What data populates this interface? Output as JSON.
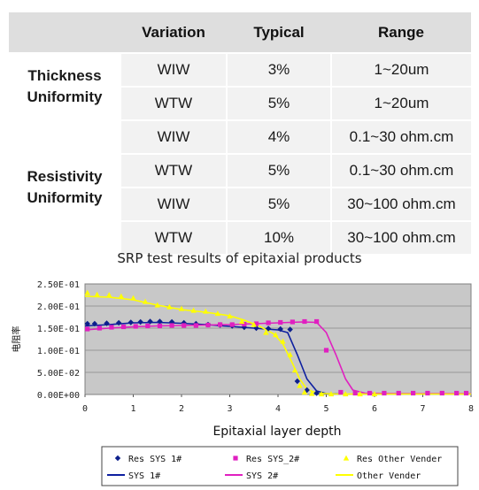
{
  "table": {
    "headers": [
      "",
      "Variation",
      "Typical",
      "Range"
    ],
    "groups": [
      {
        "label": "Thickness Uniformity",
        "rows": [
          {
            "variation": "WIW",
            "typical": "3%",
            "range": "1~20um"
          },
          {
            "variation": "WTW",
            "typical": "5%",
            "range": "1~20um"
          }
        ]
      },
      {
        "label": "Resistivity Uniformity",
        "rows": [
          {
            "variation": "WIW",
            "typical": "4%",
            "range": "0.1~30 ohm.cm"
          },
          {
            "variation": "WTW",
            "typical": "5%",
            "range": "0.1~30 ohm.cm"
          },
          {
            "variation": "WIW",
            "typical": "5%",
            "range": "30~100 ohm.cm"
          },
          {
            "variation": "WTW",
            "typical": "10%",
            "range": "30~100 ohm.cm"
          }
        ]
      }
    ]
  },
  "chart_data": {
    "type": "scatter",
    "title": "SRP test results of epitaxial products",
    "xlabel": "Epitaxial layer depth",
    "ylabel": "电阻率",
    "xlim": [
      0,
      8
    ],
    "ylim": [
      0,
      0.25
    ],
    "x_ticks": [
      "0",
      "1",
      "2",
      "3",
      "4",
      "5",
      "6",
      "7",
      "8"
    ],
    "y_ticks": [
      "0.00E+00",
      "5.00E-02",
      "1.00E-01",
      "1.50E-01",
      "2.00E-01",
      "2.50E-01"
    ],
    "plot_background": "#c8c8c8",
    "grid": true,
    "legend_position": "bottom",
    "series": [
      {
        "name": "Res SYS 1#",
        "kind": "points",
        "marker": "diamond",
        "color": "#0d1f8c",
        "points": [
          [
            0.05,
            0.16
          ],
          [
            0.2,
            0.16
          ],
          [
            0.45,
            0.161
          ],
          [
            0.7,
            0.162
          ],
          [
            0.95,
            0.163
          ],
          [
            1.15,
            0.164
          ],
          [
            1.35,
            0.165
          ],
          [
            1.55,
            0.165
          ],
          [
            1.8,
            0.164
          ],
          [
            2.05,
            0.162
          ],
          [
            2.3,
            0.16
          ],
          [
            2.55,
            0.158
          ],
          [
            2.8,
            0.157
          ],
          [
            3.05,
            0.155
          ],
          [
            3.3,
            0.152
          ],
          [
            3.55,
            0.15
          ],
          [
            3.8,
            0.149
          ],
          [
            4.05,
            0.148
          ],
          [
            4.25,
            0.147
          ],
          [
            4.4,
            0.03
          ],
          [
            4.6,
            0.01
          ],
          [
            4.8,
            0.003
          ]
        ]
      },
      {
        "name": "Res SYS_2#",
        "kind": "points",
        "marker": "square",
        "color": "#e020c0",
        "points": [
          [
            0.05,
            0.148
          ],
          [
            0.3,
            0.15
          ],
          [
            0.55,
            0.152
          ],
          [
            0.8,
            0.153
          ],
          [
            1.05,
            0.154
          ],
          [
            1.3,
            0.155
          ],
          [
            1.55,
            0.155
          ],
          [
            1.8,
            0.156
          ],
          [
            2.05,
            0.156
          ],
          [
            2.3,
            0.156
          ],
          [
            2.55,
            0.157
          ],
          [
            2.8,
            0.158
          ],
          [
            3.05,
            0.158
          ],
          [
            3.3,
            0.159
          ],
          [
            3.55,
            0.16
          ],
          [
            3.8,
            0.162
          ],
          [
            4.05,
            0.163
          ],
          [
            4.3,
            0.164
          ],
          [
            4.55,
            0.165
          ],
          [
            4.8,
            0.165
          ],
          [
            5.0,
            0.1
          ],
          [
            5.3,
            0.005
          ],
          [
            5.6,
            0.003
          ],
          [
            5.9,
            0.003
          ],
          [
            6.2,
            0.003
          ],
          [
            6.5,
            0.003
          ],
          [
            6.8,
            0.003
          ],
          [
            7.1,
            0.003
          ],
          [
            7.4,
            0.003
          ],
          [
            7.7,
            0.003
          ],
          [
            7.9,
            0.003
          ]
        ]
      },
      {
        "name": "Res Other Vender",
        "kind": "points",
        "marker": "triangle",
        "color": "#ffff00",
        "points": [
          [
            0.05,
            0.23
          ],
          [
            0.25,
            0.226
          ],
          [
            0.5,
            0.225
          ],
          [
            0.75,
            0.222
          ],
          [
            1.0,
            0.218
          ],
          [
            1.25,
            0.21
          ],
          [
            1.5,
            0.202
          ],
          [
            1.75,
            0.198
          ],
          [
            2.0,
            0.194
          ],
          [
            2.25,
            0.19
          ],
          [
            2.5,
            0.188
          ],
          [
            2.75,
            0.183
          ],
          [
            3.0,
            0.177
          ],
          [
            3.25,
            0.165
          ],
          [
            3.5,
            0.158
          ],
          [
            3.75,
            0.14
          ],
          [
            3.95,
            0.135
          ],
          [
            4.1,
            0.12
          ],
          [
            4.25,
            0.09
          ],
          [
            4.35,
            0.055
          ],
          [
            4.45,
            0.02
          ],
          [
            4.55,
            0.005
          ],
          [
            4.7,
            0.002
          ],
          [
            4.9,
            0.001
          ],
          [
            5.1,
            0.001
          ],
          [
            5.4,
            0.001
          ],
          [
            5.7,
            0.001
          ],
          [
            6.0,
            0.001
          ]
        ]
      },
      {
        "name": "SYS 1#",
        "kind": "line",
        "color": "#0d1fa0",
        "points": [
          [
            0,
            0.155
          ],
          [
            0.5,
            0.158
          ],
          [
            1.0,
            0.162
          ],
          [
            1.5,
            0.163
          ],
          [
            2.0,
            0.161
          ],
          [
            2.5,
            0.158
          ],
          [
            3.0,
            0.154
          ],
          [
            3.5,
            0.15
          ],
          [
            4.0,
            0.146
          ],
          [
            4.2,
            0.14
          ],
          [
            4.4,
            0.09
          ],
          [
            4.6,
            0.035
          ],
          [
            4.8,
            0.008
          ],
          [
            5.0,
            0.002
          ],
          [
            5.3,
            0.001
          ]
        ]
      },
      {
        "name": "SYS 2#",
        "kind": "line",
        "color": "#e020c0",
        "points": [
          [
            0,
            0.146
          ],
          [
            0.5,
            0.15
          ],
          [
            1.0,
            0.153
          ],
          [
            1.5,
            0.155
          ],
          [
            2.0,
            0.156
          ],
          [
            2.5,
            0.157
          ],
          [
            3.0,
            0.158
          ],
          [
            3.5,
            0.16
          ],
          [
            4.0,
            0.162
          ],
          [
            4.5,
            0.164
          ],
          [
            4.8,
            0.163
          ],
          [
            5.0,
            0.14
          ],
          [
            5.2,
            0.09
          ],
          [
            5.4,
            0.035
          ],
          [
            5.55,
            0.01
          ],
          [
            5.8,
            0.003
          ],
          [
            6.5,
            0.002
          ],
          [
            7.2,
            0.002
          ],
          [
            8.0,
            0.002
          ]
        ]
      },
      {
        "name": "Other Vender",
        "kind": "line",
        "color": "#ffff00",
        "points": [
          [
            0,
            0.222
          ],
          [
            0.5,
            0.22
          ],
          [
            1.0,
            0.214
          ],
          [
            1.5,
            0.202
          ],
          [
            2.0,
            0.192
          ],
          [
            2.5,
            0.186
          ],
          [
            3.0,
            0.178
          ],
          [
            3.3,
            0.168
          ],
          [
            3.6,
            0.155
          ],
          [
            3.9,
            0.138
          ],
          [
            4.1,
            0.115
          ],
          [
            4.3,
            0.07
          ],
          [
            4.45,
            0.035
          ],
          [
            4.6,
            0.012
          ],
          [
            4.8,
            0.003
          ],
          [
            5.2,
            0.001
          ],
          [
            6.0,
            0.001
          ],
          [
            7.0,
            0.001
          ],
          [
            8.0,
            0.001
          ]
        ]
      }
    ]
  }
}
